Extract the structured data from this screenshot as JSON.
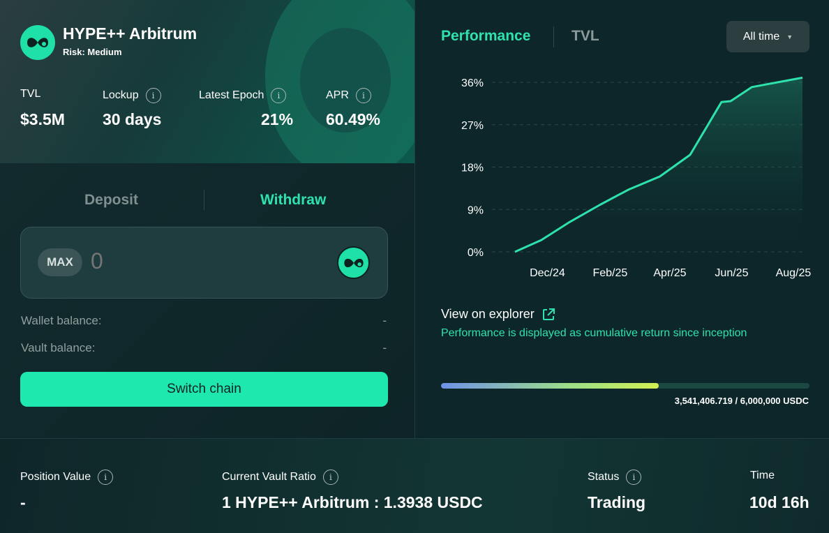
{
  "vault": {
    "name": "HYPE++ Arbitrum",
    "risk": "Risk: Medium",
    "stats": [
      {
        "label": "TVL",
        "value": "$3.5M"
      },
      {
        "label": "Lockup",
        "value": "30 days"
      },
      {
        "label": "Latest Epoch",
        "value": "21%"
      },
      {
        "label": "APR",
        "value": "60.49%"
      }
    ]
  },
  "action_tabs": {
    "deposit": "Deposit",
    "withdraw": "Withdraw",
    "active": "withdraw"
  },
  "amount_input": {
    "max_label": "MAX",
    "placeholder": "0"
  },
  "balances": {
    "wallet_label": "Wallet balance:",
    "wallet_value": "-",
    "vault_label": "Vault balance:",
    "vault_value": "-"
  },
  "switch_button": "Switch chain",
  "chart_tabs": {
    "performance": "Performance",
    "tvl": "TVL",
    "active": "performance"
  },
  "time_filter": {
    "selected": "All time"
  },
  "chart_data": {
    "type": "area",
    "x": [
      "2024-11-09",
      "2024-12-05",
      "2025-01-01",
      "2025-02-01",
      "2025-03-01",
      "2025-04-01",
      "2025-05-01",
      "2025-06-01",
      "2025-06-10",
      "2025-07-01",
      "2025-08-20"
    ],
    "values": [
      0,
      2.5,
      6.2,
      10.0,
      13.2,
      16.0,
      20.6,
      31.8,
      32.0,
      35.0,
      37.0
    ],
    "xticks": [
      "Dec/24",
      "Feb/25",
      "Apr/25",
      "Jun/25",
      "Aug/25"
    ],
    "yticks": [
      "0%",
      "9%",
      "18%",
      "27%",
      "36%"
    ],
    "ylim": [
      0,
      36
    ],
    "grid": true,
    "line_color": "#2ee3ab"
  },
  "explorer_link": "View on explorer",
  "performance_note": "Performance is displayed as cumulative return since inception",
  "capacity": {
    "fraction": 0.59,
    "text": "3,541,406.719 / 6,000,000 USDC"
  },
  "position": [
    {
      "label": "Position Value",
      "value": "-"
    },
    {
      "label": "Current Vault Ratio",
      "value": "1 HYPE++ Arbitrum : 1.3938 USDC"
    },
    {
      "label": "Status",
      "value": "Trading"
    },
    {
      "label": "Time",
      "value": "10d 16h"
    }
  ],
  "colors": {
    "accent": "#1ee8ad",
    "muted": "#8fa09e",
    "background": "#0d2226"
  }
}
